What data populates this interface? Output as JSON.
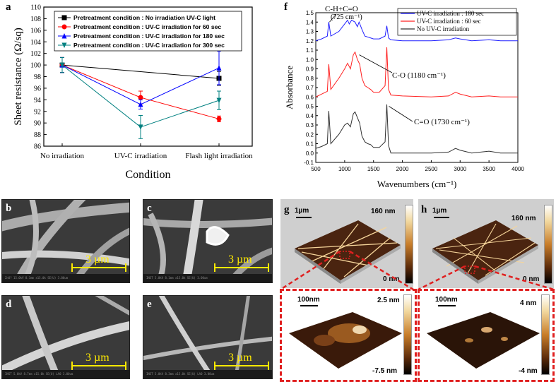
{
  "chart_data": [
    {
      "panel": "a",
      "type": "line",
      "xlabel": "Condition",
      "ylabel": "Sheet resistance (Ω/sq)",
      "categories": [
        "No irradiation",
        "UV-C irradiation",
        "Flash light irradiation"
      ],
      "ylim": [
        86,
        110
      ],
      "yticks": [
        86,
        88,
        90,
        92,
        94,
        96,
        98,
        100,
        102,
        104,
        106,
        108,
        110
      ],
      "series": [
        {
          "name": "Pretreatment condition : No irradiation UV-C light",
          "color": "#000000",
          "marker": "square",
          "values": [
            100,
            null,
            97.7
          ],
          "err": [
            1.3,
            null,
            1.2
          ]
        },
        {
          "name": "Pretreatment condition : UV-C irradiation for 60 sec",
          "color": "#ff0000",
          "marker": "circle",
          "values": [
            100,
            94.4,
            90.7
          ],
          "err": [
            1.3,
            1.1,
            0.5
          ]
        },
        {
          "name": "Pretreatment condition : UV-C irradiation for 180 sec",
          "color": "#0000ff",
          "marker": "triangle-up",
          "values": [
            100,
            93.2,
            99.5
          ],
          "err": [
            1.3,
            0.8,
            2.9
          ]
        },
        {
          "name": "Pretreatment condition : UV-C irradiation for 300 sec",
          "color": "#008080",
          "marker": "triangle-down",
          "values": [
            100,
            89.3,
            93.9
          ],
          "err": [
            1.3,
            2.0,
            1.6
          ]
        }
      ]
    },
    {
      "panel": "f",
      "type": "line",
      "xlabel": "Wavenumbers (cm⁻¹)",
      "ylabel": "Absorbance",
      "xlim": [
        500,
        4000
      ],
      "ylim": [
        -0.1,
        1.5
      ],
      "xticks": [
        500,
        1000,
        1500,
        2000,
        2500,
        3000,
        3500,
        4000
      ],
      "yticks": [
        -0.1,
        0.0,
        0.1,
        0.2,
        0.3,
        0.4,
        0.5,
        0.6,
        0.7,
        0.8,
        0.9,
        1.0,
        1.1,
        1.2,
        1.3,
        1.4,
        1.5
      ],
      "series": [
        {
          "name": "UV-C irradiation : 180 sec",
          "color": "#2020ff",
          "offset": 1.2,
          "x": [
            500,
            600,
            700,
            725,
            760,
            900,
            1000,
            1050,
            1080,
            1120,
            1180,
            1220,
            1250,
            1300,
            1350,
            1400,
            1450,
            1500,
            1600,
            1700,
            1730,
            1760,
            1800,
            2000,
            2500,
            2800,
            2920,
            3000,
            3200,
            3500,
            3700,
            4000
          ],
          "y": [
            0.0,
            0.02,
            0.05,
            0.2,
            0.05,
            0.1,
            0.18,
            0.22,
            0.18,
            0.22,
            0.2,
            0.15,
            0.2,
            0.12,
            0.05,
            0.04,
            0.03,
            0.02,
            0.02,
            0.05,
            0.16,
            0.03,
            0.01,
            0.0,
            0.0,
            0.01,
            0.03,
            0.02,
            0.0,
            0.01,
            0.0,
            0.0
          ]
        },
        {
          "name": "UV-C irradiation : 60 sec",
          "color": "#ff2020",
          "offset": 0.6,
          "x": [
            500,
            600,
            700,
            725,
            760,
            900,
            1000,
            1050,
            1100,
            1150,
            1180,
            1220,
            1260,
            1300,
            1350,
            1400,
            1450,
            1500,
            1600,
            1700,
            1730,
            1760,
            1800,
            2000,
            2500,
            2800,
            2920,
            3000,
            3200,
            3500,
            3700,
            4000
          ],
          "y": [
            0.0,
            0.03,
            0.06,
            0.35,
            0.08,
            0.2,
            0.3,
            0.36,
            0.3,
            0.45,
            0.48,
            0.4,
            0.35,
            0.2,
            0.12,
            0.1,
            0.08,
            0.05,
            0.05,
            0.12,
            0.53,
            0.08,
            0.02,
            0.01,
            0.0,
            0.01,
            0.05,
            0.03,
            0.0,
            0.01,
            0.0,
            0.0
          ]
        },
        {
          "name": "No UV-C irradiation",
          "color": "#303030",
          "offset": 0.0,
          "x": [
            500,
            600,
            700,
            725,
            760,
            900,
            1000,
            1050,
            1100,
            1150,
            1180,
            1220,
            1260,
            1300,
            1350,
            1400,
            1450,
            1500,
            1600,
            1700,
            1730,
            1760,
            1800,
            2000,
            2500,
            2800,
            2920,
            3000,
            3200,
            3500,
            3700,
            4000
          ],
          "y": [
            0.05,
            0.07,
            0.1,
            0.45,
            0.1,
            0.2,
            0.3,
            0.32,
            0.28,
            0.42,
            0.44,
            0.38,
            0.32,
            0.18,
            0.12,
            0.1,
            0.09,
            0.06,
            0.06,
            0.12,
            0.52,
            0.08,
            0.0,
            0.0,
            0.0,
            0.01,
            0.05,
            0.03,
            0.0,
            0.02,
            0.0,
            0.0
          ]
        }
      ],
      "annotations": [
        {
          "text": "C-H+C=O",
          "x": 725
        },
        {
          "text": "(725 cm⁻¹)",
          "x": 725
        },
        {
          "text": "C-O (1180 cm⁻¹)",
          "x": 1180
        },
        {
          "text": "C=O (1730 cm⁻¹)",
          "x": 1730
        }
      ]
    }
  ],
  "panels": {
    "a": "a",
    "b": "b",
    "c": "c",
    "d": "d",
    "e": "e",
    "f": "f",
    "g": "g",
    "h": "h"
  },
  "sem": {
    "scale_label": "3 µm",
    "footer_b": "ZnO? 15.0kV 8.1mm x15.0k SE(U)                 3.00um",
    "footer_c": "INST 5.0kV 8.1mm x15.0k SE(U)                  3.00um",
    "footer_d": "INST 5.0kV 8.7mm x15.0k SE(U) LA0              3.00um",
    "footer_e": "INST 5.0kV 8.3mm x15.0k SE(U) LA0              3.00um"
  },
  "afm": {
    "g_scale": "1µm",
    "g_top": "160 nm",
    "g_bottom": "0 nm",
    "h_scale": "1µm",
    "h_top": "160 nm",
    "h_bottom": "0 nm",
    "g_zoom_scale": "100nm",
    "g_zoom_top": "2.5 nm",
    "g_zoom_bottom": "-7.5 nm",
    "h_zoom_scale": "100nm",
    "h_zoom_top": "4 nm",
    "h_zoom_bottom": "-4 nm"
  }
}
